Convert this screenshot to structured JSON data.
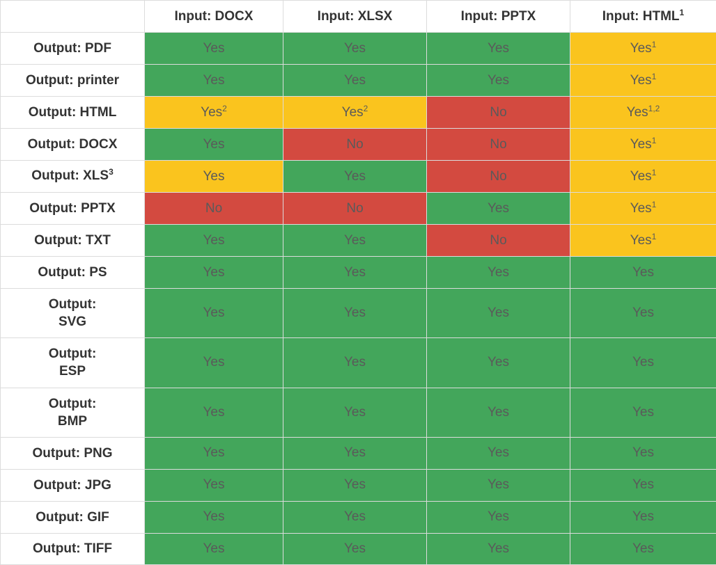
{
  "columns": [
    {
      "label": "Input: DOCX",
      "sup": ""
    },
    {
      "label": "Input: XLSX",
      "sup": ""
    },
    {
      "label": "Input: PPTX",
      "sup": ""
    },
    {
      "label": "Input: HTML",
      "sup": "1"
    }
  ],
  "rows": [
    {
      "label": "Output: PDF",
      "cells": [
        {
          "text": "Yes",
          "sup": "",
          "status": "yes"
        },
        {
          "text": "Yes",
          "sup": "",
          "status": "yes"
        },
        {
          "text": "Yes",
          "sup": "",
          "status": "yes"
        },
        {
          "text": "Yes",
          "sup": "1",
          "status": "partial"
        }
      ]
    },
    {
      "label": "Output: printer",
      "cells": [
        {
          "text": "Yes",
          "sup": "",
          "status": "yes"
        },
        {
          "text": "Yes",
          "sup": "",
          "status": "yes"
        },
        {
          "text": "Yes",
          "sup": "",
          "status": "yes"
        },
        {
          "text": "Yes",
          "sup": "1",
          "status": "partial"
        }
      ]
    },
    {
      "label": "Output: HTML",
      "cells": [
        {
          "text": "Yes",
          "sup": "2",
          "status": "partial"
        },
        {
          "text": "Yes",
          "sup": "2",
          "status": "partial"
        },
        {
          "text": "No",
          "sup": "",
          "status": "no"
        },
        {
          "text": "Yes",
          "sup": "1,2",
          "status": "partial"
        }
      ]
    },
    {
      "label": "Output: DOCX",
      "cells": [
        {
          "text": "Yes",
          "sup": "",
          "status": "yes"
        },
        {
          "text": "No",
          "sup": "",
          "status": "no"
        },
        {
          "text": "No",
          "sup": "",
          "status": "no"
        },
        {
          "text": "Yes",
          "sup": "1",
          "status": "partial"
        }
      ]
    },
    {
      "label": "Output: XLS",
      "label_sup": "3",
      "cells": [
        {
          "text": "Yes",
          "sup": "",
          "status": "partial"
        },
        {
          "text": "Yes",
          "sup": "",
          "status": "yes"
        },
        {
          "text": "No",
          "sup": "",
          "status": "no"
        },
        {
          "text": "Yes",
          "sup": "1",
          "status": "partial"
        }
      ]
    },
    {
      "label": "Output: PPTX",
      "cells": [
        {
          "text": "No",
          "sup": "",
          "status": "no"
        },
        {
          "text": "No",
          "sup": "",
          "status": "no"
        },
        {
          "text": "Yes",
          "sup": "",
          "status": "yes"
        },
        {
          "text": "Yes",
          "sup": "1",
          "status": "partial"
        }
      ]
    },
    {
      "label": "Output: TXT",
      "cells": [
        {
          "text": "Yes",
          "sup": "",
          "status": "yes"
        },
        {
          "text": "Yes",
          "sup": "",
          "status": "yes"
        },
        {
          "text": "No",
          "sup": "",
          "status": "no"
        },
        {
          "text": "Yes",
          "sup": "1",
          "status": "partial"
        }
      ]
    },
    {
      "label": "Output: PS",
      "cells": [
        {
          "text": "Yes",
          "sup": "",
          "status": "yes"
        },
        {
          "text": "Yes",
          "sup": "",
          "status": "yes"
        },
        {
          "text": "Yes",
          "sup": "",
          "status": "yes"
        },
        {
          "text": "Yes",
          "sup": "",
          "status": "yes"
        }
      ]
    },
    {
      "label": "Output:",
      "label2": "SVG",
      "cells": [
        {
          "text": "Yes",
          "sup": "",
          "status": "yes"
        },
        {
          "text": "Yes",
          "sup": "",
          "status": "yes"
        },
        {
          "text": "Yes",
          "sup": "",
          "status": "yes"
        },
        {
          "text": "Yes",
          "sup": "",
          "status": "yes"
        }
      ]
    },
    {
      "label": "Output:",
      "label2": "ESP",
      "cells": [
        {
          "text": "Yes",
          "sup": "",
          "status": "yes"
        },
        {
          "text": "Yes",
          "sup": "",
          "status": "yes"
        },
        {
          "text": "Yes",
          "sup": "",
          "status": "yes"
        },
        {
          "text": "Yes",
          "sup": "",
          "status": "yes"
        }
      ]
    },
    {
      "label": "Output:",
      "label2": "BMP",
      "cells": [
        {
          "text": "Yes",
          "sup": "",
          "status": "yes"
        },
        {
          "text": "Yes",
          "sup": "",
          "status": "yes"
        },
        {
          "text": "Yes",
          "sup": "",
          "status": "yes"
        },
        {
          "text": "Yes",
          "sup": "",
          "status": "yes"
        }
      ]
    },
    {
      "label": "Output: PNG",
      "cells": [
        {
          "text": "Yes",
          "sup": "",
          "status": "yes"
        },
        {
          "text": "Yes",
          "sup": "",
          "status": "yes"
        },
        {
          "text": "Yes",
          "sup": "",
          "status": "yes"
        },
        {
          "text": "Yes",
          "sup": "",
          "status": "yes"
        }
      ]
    },
    {
      "label": "Output: JPG",
      "cells": [
        {
          "text": "Yes",
          "sup": "",
          "status": "yes"
        },
        {
          "text": "Yes",
          "sup": "",
          "status": "yes"
        },
        {
          "text": "Yes",
          "sup": "",
          "status": "yes"
        },
        {
          "text": "Yes",
          "sup": "",
          "status": "yes"
        }
      ]
    },
    {
      "label": "Output: GIF",
      "cells": [
        {
          "text": "Yes",
          "sup": "",
          "status": "yes"
        },
        {
          "text": "Yes",
          "sup": "",
          "status": "yes"
        },
        {
          "text": "Yes",
          "sup": "",
          "status": "yes"
        },
        {
          "text": "Yes",
          "sup": "",
          "status": "yes"
        }
      ]
    },
    {
      "label": "Output: TIFF",
      "cells": [
        {
          "text": "Yes",
          "sup": "",
          "status": "yes"
        },
        {
          "text": "Yes",
          "sup": "",
          "status": "yes"
        },
        {
          "text": "Yes",
          "sup": "",
          "status": "yes"
        },
        {
          "text": "Yes",
          "sup": "",
          "status": "yes"
        }
      ]
    }
  ],
  "colors": {
    "yes": "#43a65b",
    "partial": "#fac41e",
    "no": "#d34a40"
  }
}
